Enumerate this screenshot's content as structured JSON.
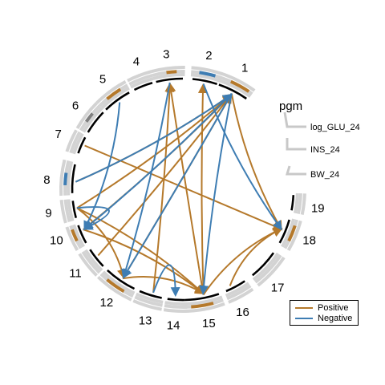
{
  "chart_data": {
    "type": "circos",
    "chromosomes": [
      "1",
      "2",
      "3",
      "4",
      "5",
      "6",
      "7",
      "8",
      "9",
      "10",
      "11",
      "12",
      "13",
      "14",
      "15",
      "16",
      "17",
      "18",
      "19"
    ],
    "tracks": [
      "pgm",
      "log_GLU_24",
      "INS_24",
      "BW_24"
    ],
    "legend": [
      {
        "label": "Positive",
        "color": "#B5792B"
      },
      {
        "label": "Negative",
        "color": "#3E7DB3"
      }
    ],
    "links": [
      {
        "from": "7",
        "to": "18",
        "sign": "Positive"
      },
      {
        "from": "8",
        "to": "1",
        "sign": "Positive"
      },
      {
        "from": "9",
        "to": "1",
        "sign": "Positive"
      },
      {
        "from": "9",
        "to": "15",
        "sign": "Positive"
      },
      {
        "from": "9",
        "to": "12",
        "sign": "Positive"
      },
      {
        "from": "10",
        "to": "1",
        "sign": "Positive"
      },
      {
        "from": "10",
        "to": "15",
        "sign": "Positive"
      },
      {
        "from": "11",
        "to": "1",
        "sign": "Positive"
      },
      {
        "from": "12",
        "to": "1",
        "sign": "Positive"
      },
      {
        "from": "13",
        "to": "3",
        "sign": "Positive"
      },
      {
        "from": "15",
        "to": "3",
        "sign": "Positive"
      },
      {
        "from": "15",
        "to": "2",
        "sign": "Positive"
      },
      {
        "from": "15",
        "to": "18",
        "sign": "Positive"
      },
      {
        "from": "16",
        "to": "18",
        "sign": "Positive"
      },
      {
        "from": "1",
        "to": "18",
        "sign": "Positive"
      },
      {
        "from": "12",
        "to": "15",
        "sign": "Positive"
      },
      {
        "from": "5",
        "to": "10",
        "sign": "Negative"
      },
      {
        "from": "3",
        "to": "12",
        "sign": "Negative"
      },
      {
        "from": "8",
        "to": "1",
        "sign": "Negative"
      },
      {
        "from": "1",
        "to": "15",
        "sign": "Negative"
      },
      {
        "from": "1",
        "to": "12",
        "sign": "Negative"
      },
      {
        "from": "2",
        "to": "18",
        "sign": "Negative"
      },
      {
        "from": "9",
        "to": "10",
        "sign": "Negative"
      },
      {
        "from": "13",
        "to": "14",
        "sign": "Negative"
      },
      {
        "from": "1",
        "to": "10",
        "sign": "Negative"
      }
    ]
  }
}
